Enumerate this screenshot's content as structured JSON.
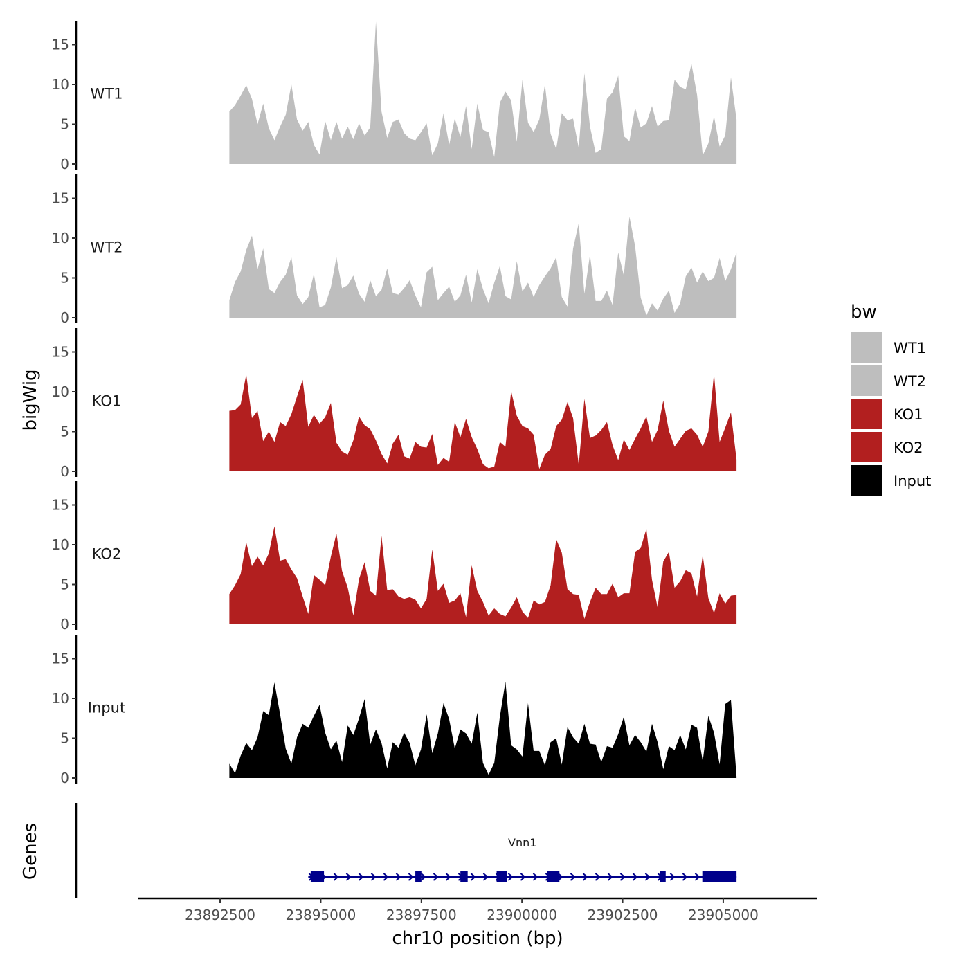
{
  "chart_data": {
    "type": "area",
    "chromosome_axis": {
      "label": "chr10 position (bp)",
      "ticks": [
        23892500,
        23895000,
        23897500,
        23900000,
        23902500,
        23905000
      ],
      "tick_labels": [
        "23892500",
        "23895000",
        "23897500",
        "23900000",
        "23902500",
        "23905000"
      ],
      "xlim": [
        23890470,
        23907340
      ]
    },
    "y_axis": {
      "label": "bigWig",
      "ylim": [
        0,
        18
      ],
      "ticks": [
        0,
        5,
        10,
        15
      ],
      "tick_labels": [
        "0",
        "5",
        "10",
        "15"
      ]
    },
    "legend": {
      "title": "bw",
      "placement": "right",
      "entries": [
        {
          "label": "WT1",
          "color": "#bebebe"
        },
        {
          "label": "WT2",
          "color": "#bebebe"
        },
        {
          "label": "KO1",
          "color": "#b21f1f"
        },
        {
          "label": "KO2",
          "color": "#b21f1f"
        },
        {
          "label": "Input",
          "color": "#000000"
        }
      ]
    },
    "x_start": 23892730,
    "x_end": 23905330,
    "series": [
      {
        "name": "WT1",
        "label": "WT1",
        "color": "#bebebe",
        "values": [
          6.6,
          7.4,
          8.6,
          9.9,
          8.2,
          5.0,
          7.6,
          4.5,
          3.0,
          4.7,
          6.2,
          10.0,
          5.6,
          4.2,
          5.3,
          2.4,
          1.2,
          5.4,
          3.0,
          5.3,
          3.2,
          4.7,
          3.1,
          5.1,
          3.6,
          4.6,
          17.9,
          6.6,
          3.3,
          5.3,
          5.6,
          3.9,
          3.2,
          3.0,
          4.0,
          5.1,
          1.1,
          2.6,
          6.4,
          2.4,
          5.7,
          3.4,
          7.3,
          1.9,
          7.6,
          4.3,
          4.0,
          0.9,
          7.7,
          9.1,
          8.0,
          2.8,
          10.6,
          5.2,
          4.0,
          5.6,
          10.0,
          3.8,
          1.9,
          6.4,
          5.5,
          5.7,
          2.0,
          11.4,
          4.7,
          1.4,
          1.9,
          8.2,
          9.0,
          11.1,
          3.5,
          2.9,
          7.1,
          4.6,
          5.1,
          7.3,
          4.7,
          5.4,
          5.5,
          10.6,
          9.7,
          9.4,
          12.6,
          8.7,
          1.1,
          2.6,
          6.0,
          2.2,
          3.6,
          10.9,
          5.6
        ]
      },
      {
        "name": "WT2",
        "label": "WT2",
        "color": "#bebebe",
        "values": [
          2.2,
          4.5,
          5.8,
          8.5,
          10.3,
          6.1,
          8.7,
          3.6,
          3.1,
          4.5,
          5.4,
          7.6,
          2.8,
          1.7,
          2.6,
          5.5,
          1.3,
          1.6,
          3.8,
          7.6,
          3.7,
          4.1,
          5.3,
          3.0,
          2.0,
          4.7,
          2.7,
          3.5,
          6.2,
          3.1,
          2.9,
          3.7,
          4.7,
          2.8,
          1.3,
          5.7,
          6.4,
          2.2,
          3.1,
          3.9,
          2.0,
          2.8,
          5.4,
          1.9,
          6.1,
          3.6,
          1.8,
          4.4,
          6.5,
          2.7,
          2.3,
          7.1,
          3.3,
          4.4,
          2.6,
          4.1,
          5.2,
          6.2,
          7.6,
          2.6,
          1.4,
          8.7,
          11.9,
          3.0,
          7.9,
          2.1,
          2.1,
          3.4,
          1.6,
          8.2,
          5.3,
          12.7,
          9.0,
          2.5,
          0.3,
          1.8,
          0.9,
          2.4,
          3.4,
          0.6,
          1.8,
          5.2,
          6.3,
          4.4,
          5.8,
          4.6,
          5.0,
          7.5,
          4.6,
          6.1,
          8.2
        ]
      },
      {
        "name": "KO1",
        "label": "KO1",
        "color": "#b21f1f",
        "values": [
          7.6,
          7.7,
          8.4,
          12.2,
          6.7,
          7.6,
          3.8,
          5.0,
          3.7,
          6.2,
          5.7,
          7.2,
          9.4,
          11.5,
          5.6,
          7.1,
          6.0,
          6.8,
          8.6,
          3.6,
          2.5,
          2.1,
          3.9,
          6.9,
          5.8,
          5.3,
          3.9,
          2.2,
          1.0,
          3.5,
          4.6,
          1.9,
          1.6,
          3.7,
          3.1,
          3.0,
          4.7,
          0.8,
          1.7,
          1.2,
          6.2,
          4.3,
          6.6,
          4.3,
          2.8,
          0.9,
          0.4,
          0.6,
          3.7,
          3.1,
          10.1,
          7.0,
          5.7,
          5.4,
          4.6,
          0.3,
          2.1,
          2.8,
          5.7,
          6.5,
          8.7,
          6.7,
          0.8,
          9.1,
          4.2,
          4.5,
          5.2,
          6.2,
          3.3,
          1.4,
          4.0,
          2.7,
          4.1,
          5.4,
          6.9,
          3.7,
          5.2,
          8.9,
          5.1,
          3.1,
          4.1,
          5.1,
          5.4,
          4.6,
          3.1,
          5.0,
          12.3,
          3.7,
          5.5,
          7.4,
          1.5
        ]
      },
      {
        "name": "KO2",
        "label": "KO2",
        "color": "#b21f1f",
        "values": [
          3.8,
          4.9,
          6.3,
          10.3,
          7.3,
          8.5,
          7.4,
          8.9,
          12.3,
          8.0,
          8.2,
          6.9,
          5.8,
          3.5,
          1.3,
          6.2,
          5.6,
          4.9,
          8.5,
          11.4,
          6.7,
          4.6,
          1.1,
          5.7,
          7.8,
          4.2,
          3.6,
          11.1,
          4.3,
          4.4,
          3.5,
          3.2,
          3.4,
          3.1,
          2.0,
          3.2,
          9.4,
          4.2,
          5.1,
          2.7,
          3.0,
          3.9,
          0.9,
          7.4,
          4.2,
          2.8,
          1.1,
          2.0,
          1.3,
          1.0,
          2.1,
          3.4,
          1.6,
          0.8,
          3.0,
          2.5,
          2.8,
          4.9,
          10.7,
          9.0,
          4.4,
          3.8,
          3.7,
          0.7,
          2.8,
          4.6,
          3.8,
          3.8,
          5.1,
          3.4,
          3.9,
          3.9,
          9.1,
          9.6,
          12.0,
          5.6,
          2.1,
          7.9,
          9.1,
          4.6,
          5.4,
          6.8,
          6.4,
          3.5,
          8.7,
          3.3,
          1.4,
          3.9,
          2.6,
          3.6,
          3.7
        ]
      },
      {
        "name": "Input",
        "label": "Input",
        "color": "#000000",
        "values": [
          1.8,
          0.6,
          2.8,
          4.4,
          3.5,
          5.1,
          8.4,
          7.9,
          12.0,
          8.0,
          3.7,
          1.8,
          5.1,
          6.8,
          6.3,
          7.8,
          9.2,
          5.7,
          3.6,
          4.7,
          2.0,
          6.6,
          5.4,
          7.5,
          9.9,
          4.2,
          6.1,
          4.4,
          1.2,
          4.5,
          3.8,
          5.7,
          4.4,
          1.6,
          3.6,
          8.0,
          3.1,
          5.6,
          9.4,
          7.4,
          3.7,
          6.1,
          5.6,
          4.3,
          8.2,
          1.9,
          0.4,
          1.9,
          7.7,
          12.1,
          4.1,
          3.6,
          2.7,
          9.4,
          3.4,
          3.4,
          1.6,
          4.5,
          5.0,
          1.7,
          6.4,
          5.1,
          4.3,
          6.8,
          4.3,
          4.2,
          2.0,
          4.0,
          3.8,
          5.5,
          7.7,
          4.1,
          5.4,
          4.5,
          3.3,
          6.8,
          4.5,
          1.1,
          4.0,
          3.5,
          5.4,
          3.6,
          6.7,
          6.3,
          2.1,
          7.8,
          5.7,
          1.7,
          9.3,
          9.8,
          0.2
        ]
      }
    ],
    "genes_track": {
      "label": "Genes",
      "gene": {
        "name": "Vnn1",
        "strand": "+",
        "start": 23894690,
        "end": 23905330,
        "color": "#00008b",
        "exons": [
          [
            23894750,
            23895080
          ],
          [
            23897350,
            23897500
          ],
          [
            23898470,
            23898650
          ],
          [
            23899370,
            23899630
          ],
          [
            23900630,
            23900930
          ],
          [
            23903420,
            23903570
          ],
          [
            23904480,
            23905330
          ]
        ]
      }
    }
  }
}
